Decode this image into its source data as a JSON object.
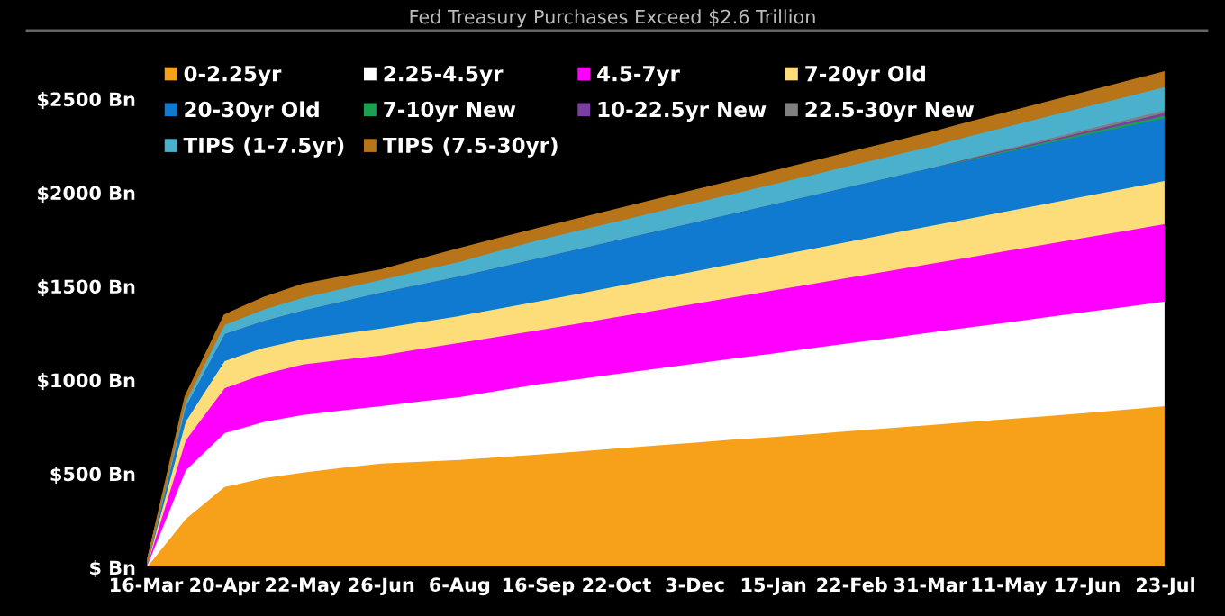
{
  "chart_data": {
    "type": "area",
    "stacked": true,
    "title": "Fed Treasury Purchases Exceed $2.6 Trillion",
    "categories": [
      "16-Mar",
      null,
      "20-Apr",
      null,
      "22-May",
      null,
      "26-Jun",
      null,
      "6-Aug",
      null,
      "16-Sep",
      null,
      "22-Oct",
      null,
      "3-Dec",
      null,
      "15-Jan",
      null,
      "22-Feb",
      null,
      "31-Mar",
      null,
      "11-May",
      null,
      "17-Jun",
      null,
      "23-Jul"
    ],
    "series": [
      {
        "name": "0-2.25yr",
        "color": "#f7a11a",
        "values": [
          0,
          260,
          433,
          480,
          510,
          535,
          558,
          568,
          577,
          592,
          606,
          622,
          638,
          654,
          670,
          686,
          700,
          716,
          732,
          748,
          764,
          780,
          796,
          812,
          828,
          846,
          865
        ]
      },
      {
        "name": "2.25-4.5yr",
        "color": "#ffffff",
        "values": [
          0,
          260,
          287,
          300,
          307,
          307,
          307,
          322,
          336,
          355,
          375,
          386,
          398,
          410,
          421,
          433,
          446,
          458,
          470,
          481,
          493,
          505,
          516,
          528,
          540,
          549,
          558
        ]
      },
      {
        "name": "4.5-7yr",
        "color": "#ff00ff",
        "values": [
          0,
          160,
          240,
          255,
          270,
          270,
          270,
          280,
          289,
          289,
          288,
          296,
          304,
          311,
          320,
          327,
          336,
          343,
          351,
          359,
          367,
          374,
          383,
          390,
          398,
          406,
          414
        ]
      },
      {
        "name": "7-20yr Old",
        "color": "#fddc7a",
        "values": [
          0,
          100,
          145,
          140,
          134,
          138,
          144,
          143,
          144,
          149,
          154,
          159,
          164,
          169,
          173,
          179,
          183,
          188,
          192,
          198,
          202,
          207,
          211,
          216,
          221,
          226,
          230
        ]
      },
      {
        "name": "20-30yr Old",
        "color": "#0f7ad0",
        "values": [
          0,
          80,
          145,
          145,
          154,
          173,
          192,
          202,
          212,
          221,
          231,
          239,
          246,
          254,
          262,
          269,
          277,
          285,
          294,
          301,
          309,
          311,
          316,
          321,
          325,
          330,
          335
        ]
      },
      {
        "name": "7-10yr New",
        "color": "#1aa050",
        "values": [
          0,
          0,
          0,
          0,
          0,
          0,
          0,
          0,
          0,
          0,
          0,
          0,
          0,
          0,
          0,
          0,
          0,
          0,
          0,
          0,
          0,
          4,
          6,
          8,
          10,
          12,
          14
        ]
      },
      {
        "name": "10-22.5yr New",
        "color": "#7a3fa0",
        "values": [
          0,
          0,
          0,
          0,
          0,
          0,
          0,
          0,
          0,
          0,
          0,
          0,
          0,
          0,
          0,
          0,
          0,
          0,
          0,
          0,
          0,
          4,
          6,
          8,
          10,
          12,
          14
        ]
      },
      {
        "name": "22.5-30yr New",
        "color": "#808080",
        "values": [
          0,
          0,
          0,
          0,
          0,
          0,
          0,
          0,
          0,
          0,
          0,
          0,
          0,
          0,
          0,
          0,
          0,
          0,
          0,
          0,
          0,
          4,
          6,
          8,
          10,
          12,
          14
        ]
      },
      {
        "name": "TIPS (1-7.5yr)",
        "color": "#4bb0cc",
        "values": [
          0,
          25,
          48,
          60,
          67,
          67,
          67,
          72,
          77,
          87,
          96,
          98,
          100,
          102,
          104,
          105,
          107,
          109,
          111,
          113,
          114,
          116,
          118,
          120,
          122,
          123,
          125
        ]
      },
      {
        "name": "TIPS (7.5-30yr)",
        "color": "#b87418",
        "values": [
          0,
          25,
          48,
          60,
          68,
          60,
          49,
          58,
          67,
          62,
          58,
          59,
          60,
          62,
          63,
          64,
          65,
          66,
          67,
          68,
          70,
          71,
          72,
          73,
          74,
          76,
          77
        ]
      }
    ],
    "ylim": [
      0,
      2865
    ],
    "yticks": [
      {
        "value": 0,
        "label": "$ Bn"
      },
      {
        "value": 500,
        "label": "$500 Bn"
      },
      {
        "value": 1000,
        "label": "$1000 Bn"
      },
      {
        "value": 1500,
        "label": "$1500 Bn"
      },
      {
        "value": 2000,
        "label": "$2000 Bn"
      },
      {
        "value": 2500,
        "label": "$2500 Bn"
      }
    ],
    "legend": "top left"
  }
}
